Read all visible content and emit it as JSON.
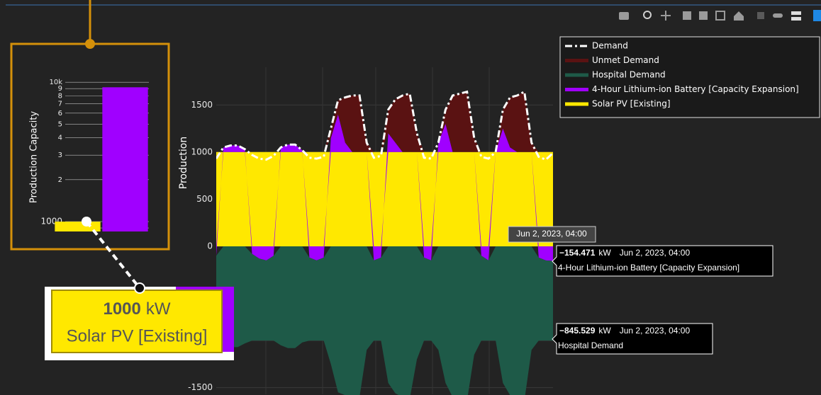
{
  "chart_data": [
    {
      "type": "bar",
      "y_label": "Production Capacity",
      "log_y": true,
      "categories": [
        null,
        null
      ],
      "values": [
        1000,
        9200
      ],
      "colors": [
        "#ffe800",
        "#a000ff"
      ],
      "ylim": [
        850,
        10500
      ],
      "yticks": [
        {
          "value": 900,
          "label": "9"
        },
        1000,
        {
          "value": 2000,
          "label": "2"
        },
        {
          "value": 3000,
          "label": "3"
        },
        {
          "value": 4000,
          "label": "4"
        },
        {
          "value": 5000,
          "label": "5"
        },
        {
          "value": 6000,
          "label": "6"
        },
        {
          "value": 7000,
          "label": "7"
        },
        {
          "value": 8000,
          "label": "8"
        },
        {
          "value": 9000,
          "label": "9"
        },
        {
          "value": 10000,
          "label": "10k"
        }
      ],
      "grid": true,
      "hover": {
        "value": 1000,
        "unit": "kW",
        "name": "Solar PV [Existing]"
      }
    },
    {
      "type": "area",
      "y_label": "Production",
      "stacked": true,
      "legend": "top-right",
      "series": [
        {
          "name": "Demand",
          "kind": "line",
          "color": "#ffffff",
          "values": [
            930,
            1050,
            1070,
            1070,
            1030,
            970,
            930,
            920,
            960,
            1050,
            1080,
            1080,
            1020,
            940,
            930,
            950,
            1250,
            1550,
            1580,
            1600,
            1600,
            1100,
            940,
            960,
            1450,
            1560,
            1600,
            1620,
            1200,
            940,
            930,
            1100,
            1450,
            1600,
            1620,
            1640,
            1150,
            950,
            930,
            1000,
            1450,
            1580,
            1600,
            1640,
            1100,
            950,
            920,
            990
          ]
        },
        {
          "name": "Unmet Demand",
          "kind": "area",
          "color": "#5a1212",
          "values": [
            0,
            0,
            0,
            0,
            0,
            0,
            0,
            0,
            0,
            0,
            0,
            0,
            0,
            0,
            0,
            0,
            100,
            150,
            480,
            600,
            600,
            100,
            0,
            0,
            250,
            460,
            600,
            620,
            200,
            0,
            0,
            0,
            150,
            600,
            620,
            640,
            150,
            0,
            0,
            0,
            200,
            530,
            600,
            640,
            100,
            0,
            0,
            0
          ]
        },
        {
          "name": "Hospital Demand",
          "kind": "area",
          "color": "#1e5a48",
          "values": [
            -900,
            -1050,
            -1070,
            -1070,
            -1030,
            -920,
            -870,
            -850,
            -900,
            -1050,
            -1080,
            -1080,
            -1020,
            -880,
            -850,
            -880,
            -1250,
            -1550,
            -1580,
            -1600,
            -1600,
            -1100,
            -850,
            -880,
            -1450,
            -1560,
            -1600,
            -1620,
            -1200,
            -880,
            -850,
            -1100,
            -1450,
            -1600,
            -1620,
            -1640,
            -1150,
            -900,
            -850,
            -1000,
            -1450,
            -1580,
            -1600,
            -1640,
            -1100,
            -880,
            -850,
            -845.529
          ]
        },
        {
          "name": "4-Hour Lithium-ion Battery [Capacity Expansion]",
          "kind": "area",
          "color": "#a000ff",
          "values": [
            -100,
            50,
            70,
            70,
            30,
            -80,
            -130,
            -150,
            -100,
            50,
            80,
            80,
            20,
            -120,
            -150,
            -120,
            150,
            400,
            100,
            0,
            0,
            0,
            -150,
            -120,
            200,
            100,
            0,
            0,
            0,
            -120,
            -150,
            100,
            300,
            0,
            0,
            0,
            0,
            -100,
            -150,
            0,
            250,
            50,
            0,
            0,
            0,
            -120,
            -150,
            -154.471
          ]
        },
        {
          "name": "Solar PV [Existing]",
          "kind": "area",
          "color": "#ffe800",
          "values": [
            1000,
            1000,
            1000,
            1000,
            1000,
            1000,
            1000,
            1000,
            1000,
            1000,
            1000,
            1000,
            1000,
            1000,
            1000,
            1000,
            1000,
            1000,
            1000,
            1000,
            1000,
            1000,
            1000,
            1000,
            1000,
            1000,
            1000,
            1000,
            1000,
            1000,
            1000,
            1000,
            1000,
            1000,
            1000,
            1000,
            1000,
            1000,
            1000,
            1000,
            1000,
            1000,
            1000,
            1000,
            1000,
            1000,
            1000,
            1000
          ]
        }
      ],
      "ylim": [
        -1570,
        1900
      ],
      "yticks": [
        -1500,
        -1000,
        -500,
        0,
        500,
        1000,
        1500
      ],
      "grid": true,
      "hover_x": "Jun 2, 2023, 04:00",
      "hover_values": [
        -154.471,
        -845.529
      ],
      "hover_value_labels": [
        "−154.471",
        "−845.529"
      ],
      "hover_unit": "kW"
    }
  ]
}
